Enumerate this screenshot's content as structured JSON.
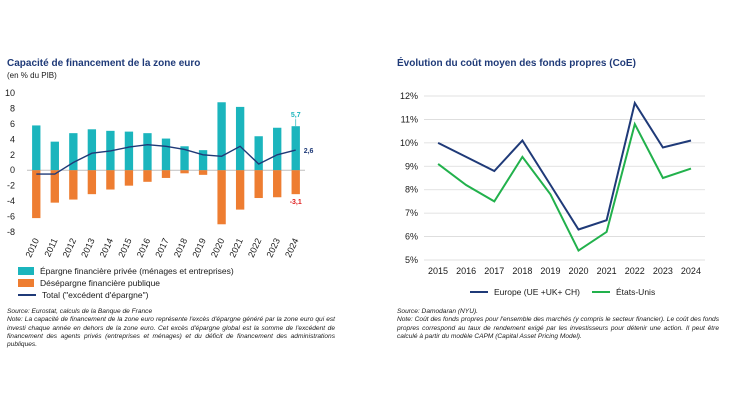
{
  "left": {
    "title": "Capacité de financement de la zone euro",
    "subtitle": "(en % du PIB)",
    "legend": {
      "private": "Épargne financière privée (ménages et entreprises)",
      "public": "Désépargne financière publique",
      "total": "Total (\"excédent d'épargne\")"
    },
    "source": "Source: Eurostat, calculs de la Banque de France",
    "note": "Note: La capacité de financement de la zone euro représente l'excès d'épargne généré par la zone euro qui est investi chaque année en dehors de la zone euro. Cet excès d'épargne global est la somme de l'excédent de financement des agents privés (entreprises et ménages) et du déficit de financement des administrations publiques."
  },
  "right": {
    "title": "Évolution du coût moyen des fonds propres (CoE)",
    "legend": {
      "europe": "Europe (UE +UK+ CH)",
      "us": "États-Unis"
    },
    "source": "Source: Damodaran (NYU).",
    "note": "Note: Coût des fonds propres pour l'ensemble des marchés (y compris le secteur financier). Le coût des fonds propres correspond au taux de rendement exigé par les investisseurs pour détenir une action. Il peut être calculé à partir du modèle CAPM (Capital Asset Pricing Model)."
  },
  "colors": {
    "teal": "#1bb5bd",
    "orange": "#ee7d31",
    "navy": "#1f3a78",
    "green": "#22b14c",
    "grid": "#d9d9d9"
  },
  "chart_data": [
    {
      "type": "bar",
      "title": "Capacité de financement de la zone euro",
      "ylabel": "en % du PIB",
      "ylim": [
        -8,
        10
      ],
      "yticks": [
        -8,
        -6,
        -4,
        -2,
        0,
        2,
        4,
        6,
        8,
        10
      ],
      "categories": [
        "2010",
        "2011",
        "2012",
        "2013",
        "2014",
        "2015",
        "2016",
        "2017",
        "2018",
        "2019",
        "2020",
        "2021",
        "2022",
        "2023",
        "2024"
      ],
      "series": [
        {
          "name": "Épargne financière privée (ménages et entreprises)",
          "kind": "bar",
          "values": [
            5.8,
            3.7,
            4.8,
            5.3,
            5.1,
            5.0,
            4.8,
            4.1,
            3.1,
            2.6,
            8.8,
            8.2,
            4.4,
            5.5,
            5.7
          ]
        },
        {
          "name": "Désépargne financière publique",
          "kind": "bar",
          "values": [
            -6.2,
            -4.2,
            -3.8,
            -3.1,
            -2.5,
            -2.0,
            -1.5,
            -1.0,
            -0.4,
            -0.6,
            -7.0,
            -5.1,
            -3.6,
            -3.5,
            -3.1
          ]
        },
        {
          "name": "Total (\"excédent d'épargne\")",
          "kind": "line",
          "values": [
            -0.5,
            -0.5,
            1.0,
            2.2,
            2.5,
            3.0,
            3.3,
            3.1,
            2.7,
            2.0,
            1.8,
            3.1,
            0.8,
            2.0,
            2.6
          ]
        }
      ],
      "data_labels": {
        "private_last": "5,7",
        "public_last": "-3,1",
        "total_last": "2,6"
      }
    },
    {
      "type": "line",
      "title": "Évolution du coût moyen des fonds propres (CoE)",
      "x": [
        "2015",
        "2016",
        "2017",
        "2018",
        "2019",
        "2020",
        "2021",
        "2022",
        "2023",
        "2024"
      ],
      "ylim": [
        5,
        12
      ],
      "yticks": [
        "5%",
        "6%",
        "7%",
        "8%",
        "9%",
        "10%",
        "11%",
        "12%"
      ],
      "series": [
        {
          "name": "Europe (UE +UK+ CH)",
          "values": [
            10.0,
            9.4,
            8.8,
            10.1,
            8.2,
            6.3,
            6.7,
            11.7,
            9.8,
            10.1
          ]
        },
        {
          "name": "États-Unis",
          "values": [
            9.1,
            8.2,
            7.5,
            9.4,
            7.8,
            5.4,
            6.2,
            10.8,
            8.5,
            8.9
          ]
        }
      ]
    }
  ]
}
